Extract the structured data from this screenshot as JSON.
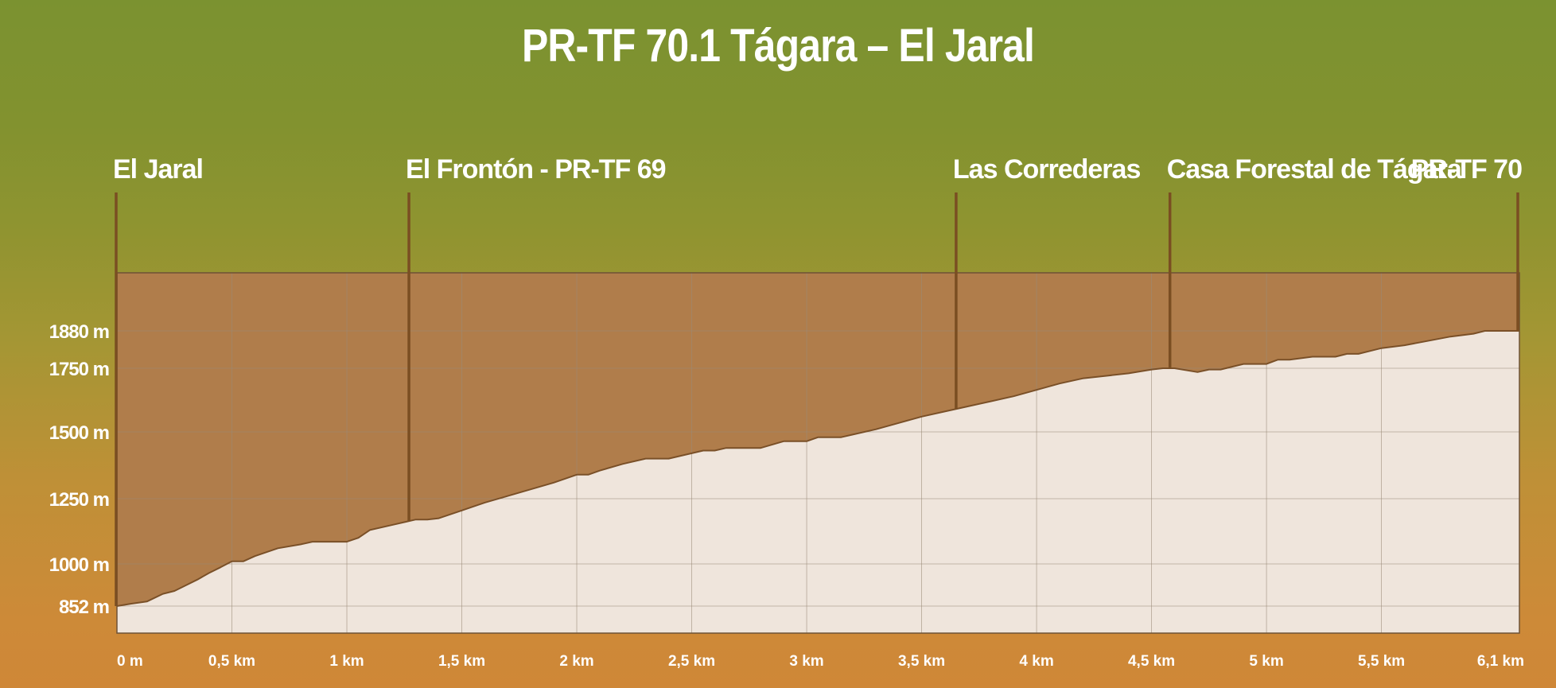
{
  "chart_data": {
    "type": "area",
    "title": "PR-TF 70.1 Tágara – El Jaral",
    "xlabel": "",
    "ylabel": "",
    "xlim": [
      0,
      6.1
    ],
    "y_ticks": [
      {
        "value": 852,
        "label": "852 m"
      },
      {
        "value": 1000,
        "label": "1000 m"
      },
      {
        "value": 1250,
        "label": "1250 m"
      },
      {
        "value": 1500,
        "label": "1500 m"
      },
      {
        "value": 1750,
        "label": "1750 m"
      },
      {
        "value": 1880,
        "label": "1880 m"
      }
    ],
    "x_ticks": [
      {
        "value": 0,
        "label": "0 m"
      },
      {
        "value": 0.5,
        "label": "0,5 km"
      },
      {
        "value": 1,
        "label": "1 km"
      },
      {
        "value": 1.5,
        "label": "1,5 km"
      },
      {
        "value": 2,
        "label": "2 km"
      },
      {
        "value": 2.5,
        "label": "2,5 km"
      },
      {
        "value": 3,
        "label": "3 km"
      },
      {
        "value": 3.5,
        "label": "3,5 km"
      },
      {
        "value": 4,
        "label": "4 km"
      },
      {
        "value": 4.5,
        "label": "4,5 km"
      },
      {
        "value": 5,
        "label": "5 km"
      },
      {
        "value": 5.5,
        "label": "5,5 km"
      },
      {
        "value": 6.1,
        "label": "6,1 km"
      }
    ],
    "waypoints": [
      {
        "name": "El Jaral",
        "x": 0
      },
      {
        "name": "El Frontón - PR-TF 69",
        "x": 1.27
      },
      {
        "name": "Las Correderas",
        "x": 3.65
      },
      {
        "name": "Casa Forestal de Tágara",
        "x": 4.58
      },
      {
        "name": "PR-TF 70",
        "x": 6.1
      }
    ],
    "grid": true,
    "colors": {
      "profile_fill": "#efe5dc",
      "sky_fill": "#b07d4b",
      "outline": "#7a5028",
      "grid": "#9a8a78"
    },
    "profile": {
      "x": [
        0,
        0.06,
        0.13,
        0.2,
        0.25,
        0.3,
        0.35,
        0.4,
        0.45,
        0.5,
        0.55,
        0.6,
        0.7,
        0.8,
        0.85,
        0.9,
        1.0,
        1.05,
        1.1,
        1.2,
        1.3,
        1.35,
        1.4,
        1.5,
        1.6,
        1.7,
        1.8,
        1.9,
        2.0,
        2.05,
        2.1,
        2.2,
        2.3,
        2.4,
        2.5,
        2.55,
        2.6,
        2.65,
        2.7,
        2.8,
        2.9,
        2.95,
        3.0,
        3.05,
        3.1,
        3.15,
        3.2,
        3.3,
        3.4,
        3.5,
        3.6,
        3.7,
        3.8,
        3.9,
        4.0,
        4.1,
        4.2,
        4.3,
        4.4,
        4.5,
        4.55,
        4.6,
        4.7,
        4.75,
        4.8,
        4.9,
        4.95,
        5.0,
        5.05,
        5.1,
        5.2,
        5.3,
        5.35,
        5.4,
        5.45,
        5.5,
        5.6,
        5.7,
        5.8,
        5.9,
        5.95,
        6.0,
        6.1
      ],
      "y": [
        852,
        860,
        868,
        895,
        905,
        925,
        945,
        968,
        988,
        1010,
        1010,
        1030,
        1060,
        1075,
        1085,
        1085,
        1085,
        1100,
        1130,
        1150,
        1170,
        1170,
        1175,
        1205,
        1235,
        1260,
        1285,
        1310,
        1340,
        1340,
        1355,
        1380,
        1400,
        1400,
        1420,
        1430,
        1430,
        1440,
        1440,
        1440,
        1465,
        1465,
        1465,
        1480,
        1480,
        1480,
        1490,
        1510,
        1535,
        1560,
        1580,
        1600,
        1620,
        1640,
        1665,
        1690,
        1710,
        1720,
        1730,
        1745,
        1750,
        1750,
        1735,
        1745,
        1745,
        1765,
        1765,
        1765,
        1780,
        1780,
        1790,
        1790,
        1800,
        1800,
        1810,
        1820,
        1830,
        1845,
        1860,
        1870,
        1880,
        1880,
        1880
      ]
    }
  }
}
